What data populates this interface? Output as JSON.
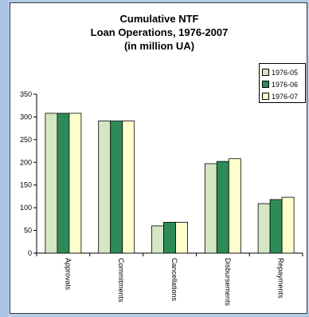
{
  "chart_data": {
    "type": "bar",
    "title_lines": [
      "Cumulative NTF",
      "Loan Operations, 1976-2007",
      "(in million UA)"
    ],
    "categories": [
      "Approvals",
      "Commitments",
      "Cancellations",
      "Disbursements",
      "Repayments"
    ],
    "series": [
      {
        "name": "1976-05",
        "color": "#d5e6c4",
        "values": [
          308,
          291,
          60,
          197,
          109
        ]
      },
      {
        "name": "1976-06",
        "color": "#2e8b57",
        "values": [
          308,
          291,
          68,
          202,
          118
        ]
      },
      {
        "name": "1976-07",
        "color": "#ffffcc",
        "values": [
          308,
          291,
          68,
          208,
          123
        ]
      }
    ],
    "yticks": [
      "0",
      "50",
      "100",
      "150",
      "200",
      "250",
      "300",
      "350"
    ],
    "ylim": [
      0,
      350
    ],
    "xlabel": "",
    "ylabel": "",
    "legend_position": "right",
    "grid": false
  }
}
